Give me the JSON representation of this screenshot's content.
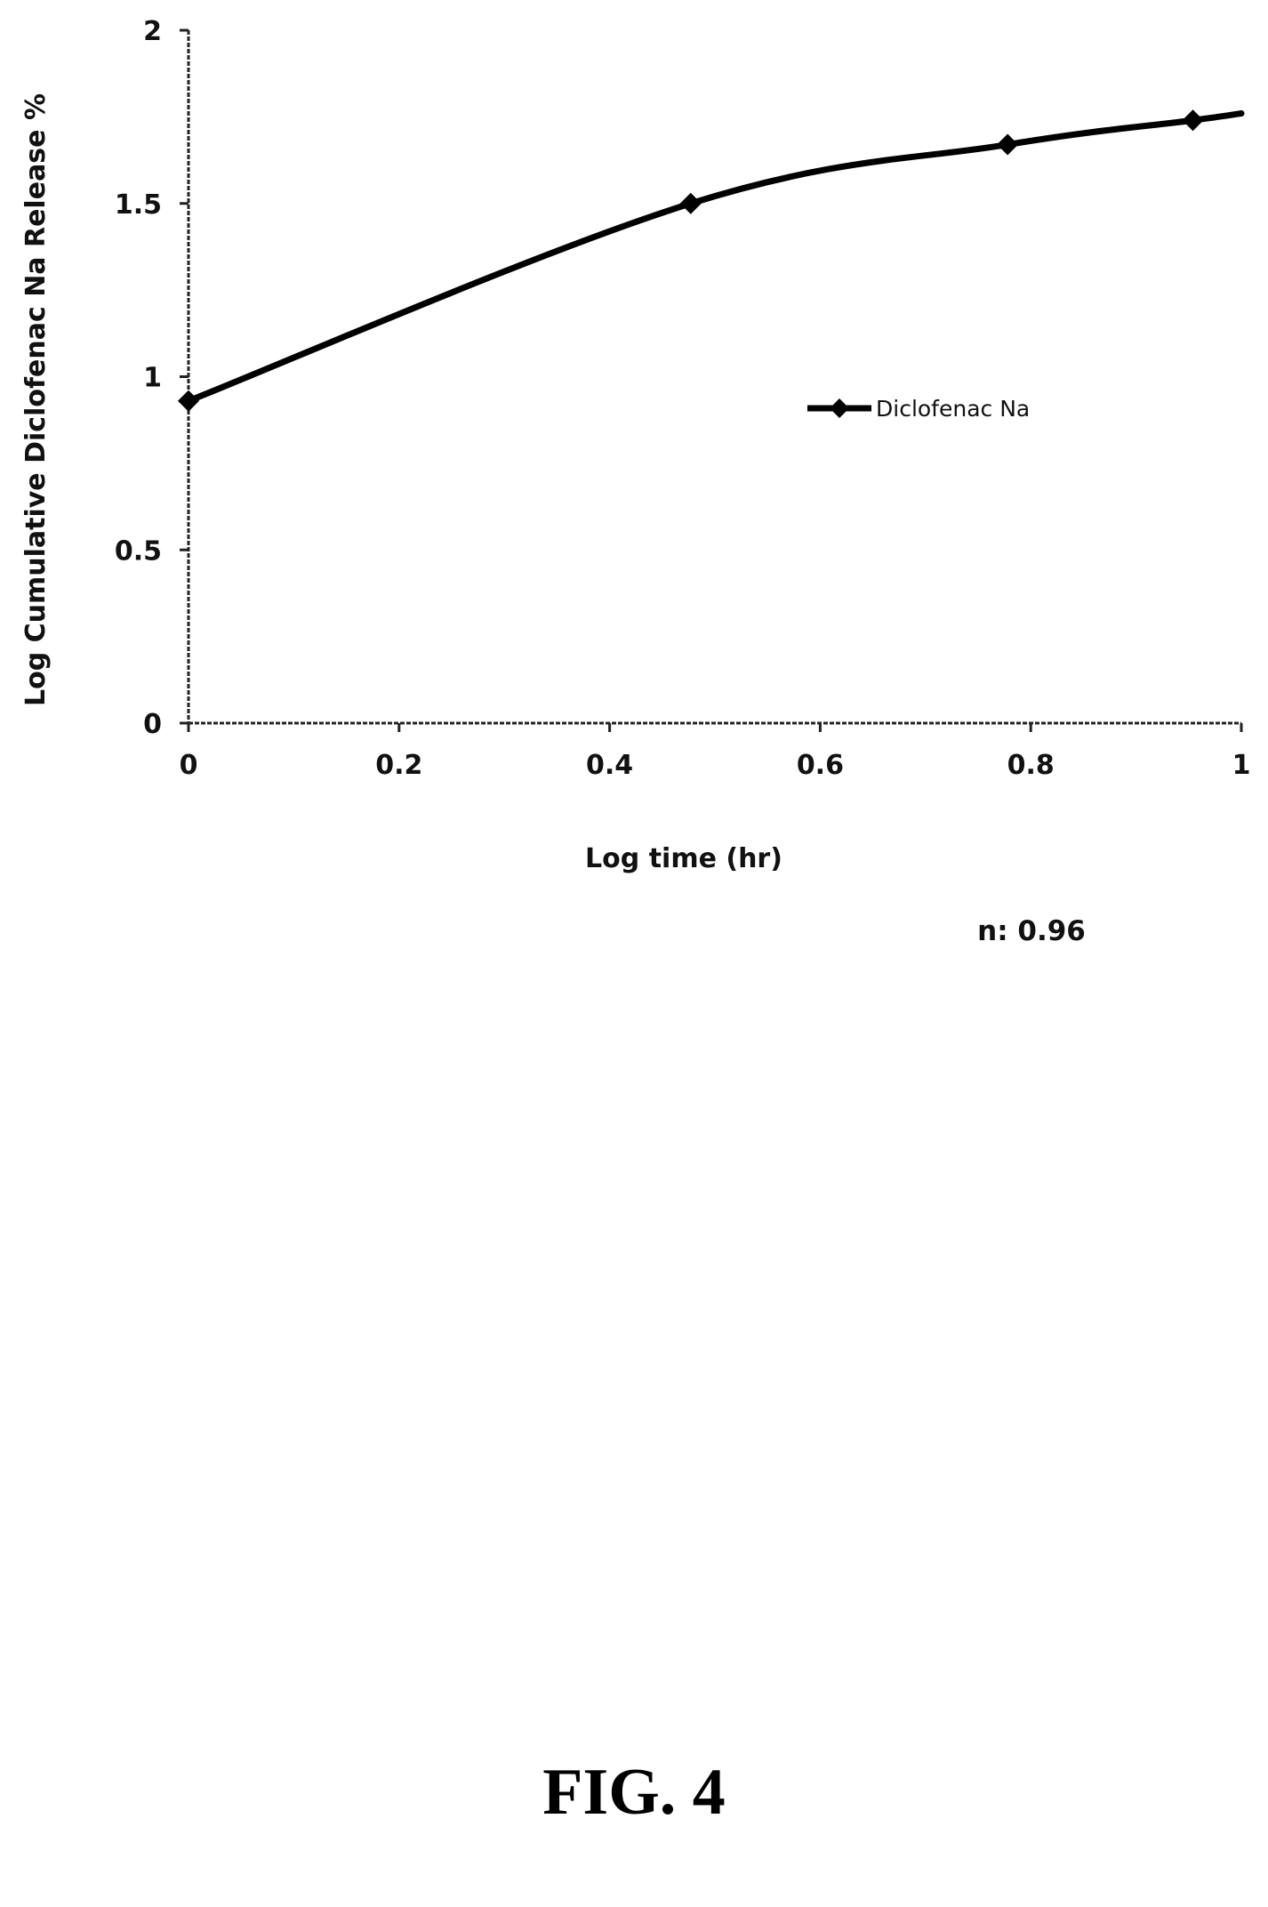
{
  "figure": {
    "caption": "FIG. 4"
  },
  "chart_data": {
    "type": "line",
    "title": "",
    "xlabel": "Log time (hr)",
    "ylabel": "Log Cumulative Diclofenac Na Release %",
    "xlim": [
      0,
      1
    ],
    "ylim": [
      0,
      2
    ],
    "x_ticks": [
      "0",
      "0.2",
      "0.4",
      "0.6",
      "0.8",
      "1"
    ],
    "y_ticks": [
      "0",
      "0.5",
      "1",
      "1.5",
      "2"
    ],
    "grid": false,
    "legend_position": "right",
    "series": [
      {
        "name": "Diclofenac Na",
        "color": "#000000",
        "marker": "diamond",
        "x": [
          0,
          0.477,
          0.778,
          0.954,
          1.0
        ],
        "y": [
          0.93,
          1.5,
          1.67,
          1.74,
          1.76
        ],
        "markers_shown": [
          true,
          true,
          true,
          true,
          false
        ]
      }
    ],
    "annotation": "n: 0.96"
  }
}
